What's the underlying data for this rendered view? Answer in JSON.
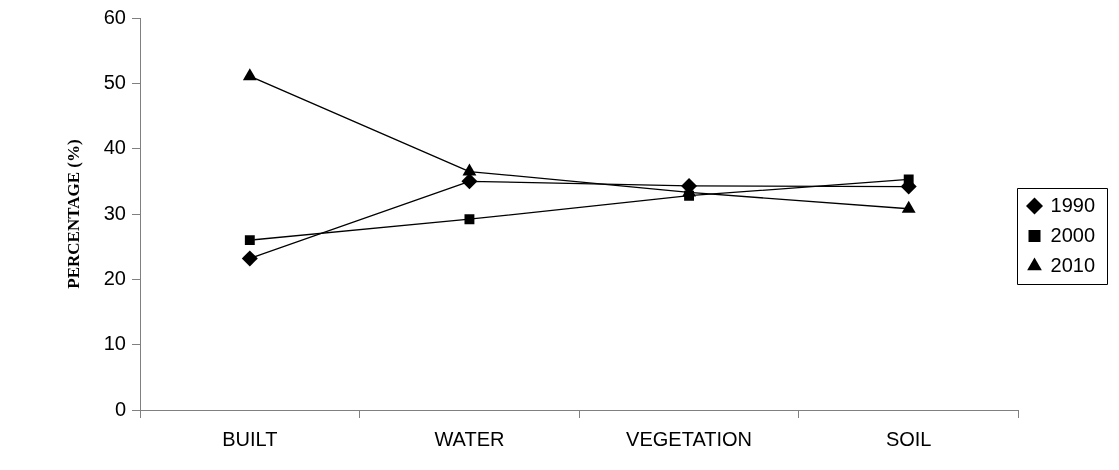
{
  "chart_data": {
    "type": "line",
    "ylabel": "PERCENTAGE (%)",
    "categories": [
      "BUILT",
      "WATER",
      "VEGETATION",
      "SOIL"
    ],
    "series": [
      {
        "name": "1990",
        "color": "#000000",
        "marker": "diamond",
        "values": [
          23.2,
          35.0,
          34.3,
          34.2
        ]
      },
      {
        "name": "2000",
        "color": "#000000",
        "marker": "square",
        "values": [
          26.0,
          29.2,
          32.8,
          35.3
        ]
      },
      {
        "name": "2010",
        "color": "#000000",
        "marker": "triangle",
        "values": [
          51.1,
          36.5,
          33.3,
          30.8
        ]
      }
    ],
    "ylim": [
      0,
      60
    ],
    "yticks": [
      0,
      10,
      20,
      30,
      40,
      50,
      60
    ],
    "grid": false,
    "legend": "right",
    "line_style": "solid"
  }
}
